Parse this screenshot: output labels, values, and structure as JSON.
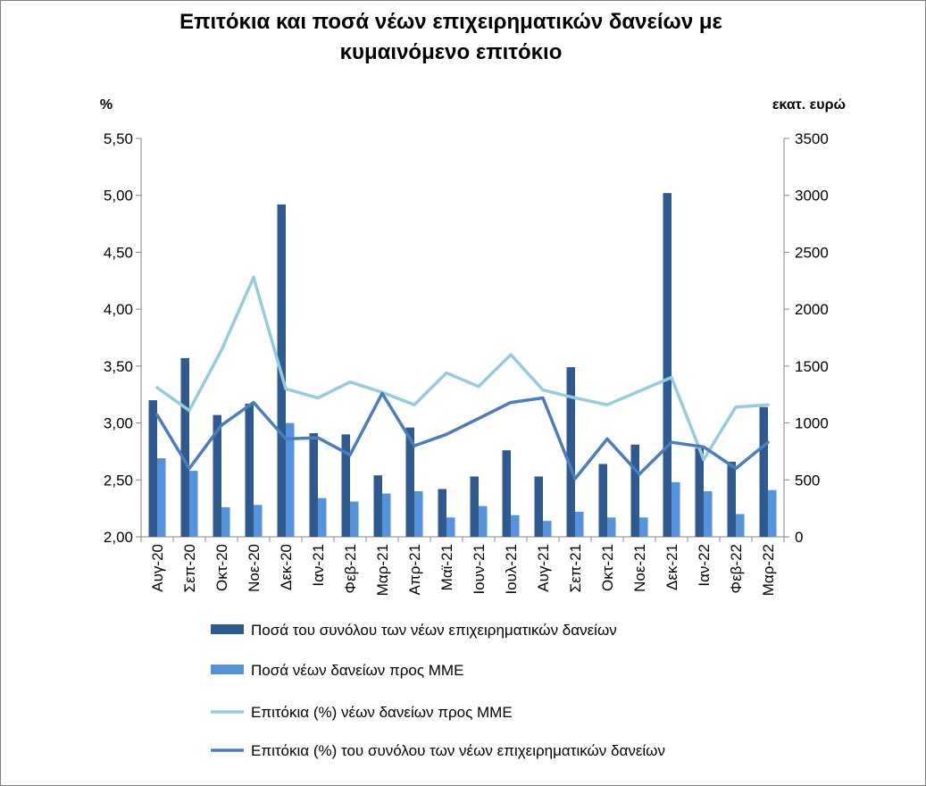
{
  "chart_data": {
    "type": "bar",
    "title_line1": "Επιτόκια και ποσά νέων επιχειρηματικών  δανείων με",
    "title_line2": "κυμαινόμενο επιτόκιο",
    "ylabel_left": "%",
    "ylabel_right": "εκατ. ευρώ",
    "ylim_left": [
      2.0,
      5.5
    ],
    "ylim_right": [
      0,
      3500
    ],
    "yticks_left": [
      "2,00",
      "2,50",
      "3,00",
      "3,50",
      "4,00",
      "4,50",
      "5,00",
      "5,50"
    ],
    "yticks_right": [
      "0",
      "500",
      "1000",
      "1500",
      "2000",
      "2500",
      "3000",
      "3500"
    ],
    "categories": [
      "Αυγ-20",
      "Σεπ-20",
      "Οκτ-20",
      "Νοε-20",
      "Δεκ-20",
      "Ιαν-21",
      "Φεβ-21",
      "Μαρ-21",
      "Απρ-21",
      "Μαϊ-21",
      "Ιουν-21",
      "Ιουλ-21",
      "Αυγ-21",
      "Σεπ-21",
      "Οκτ-21",
      "Νοε-21",
      "Δεκ-21",
      "Ιαν-22",
      "Φεβ-22",
      "Μαρ-22"
    ],
    "series": [
      {
        "name": "Ποσά του συνόλου των νέων επιχειρηματικών δανείων",
        "kind": "bar",
        "axis": "right",
        "color": "#2f5a8e",
        "values": [
          1200,
          1570,
          1070,
          1170,
          2920,
          910,
          900,
          540,
          960,
          420,
          530,
          760,
          530,
          1490,
          640,
          810,
          3020,
          780,
          660,
          1140
        ]
      },
      {
        "name": "Ποσά νέων δανείων προς ΜΜΕ",
        "kind": "bar",
        "axis": "right",
        "color": "#5692da",
        "values": [
          690,
          580,
          260,
          280,
          1000,
          340,
          310,
          380,
          400,
          170,
          270,
          190,
          140,
          220,
          170,
          170,
          480,
          400,
          200,
          410
        ]
      },
      {
        "name": "Επιτόκια (%) νέων δανείων προς ΜΜΕ",
        "kind": "line",
        "axis": "left",
        "color": "#93cddd",
        "values": [
          3.31,
          3.11,
          3.64,
          4.28,
          3.3,
          3.22,
          3.36,
          3.27,
          3.16,
          3.44,
          3.32,
          3.6,
          3.29,
          3.22,
          3.16,
          3.28,
          3.4,
          2.68,
          3.14,
          3.16
        ]
      },
      {
        "name": "Επιτόκια (%) του συνόλου των νέων επιχειρηματικών δανείων",
        "kind": "line",
        "axis": "left",
        "color": "#4a7ebb",
        "values": [
          3.07,
          2.6,
          2.98,
          3.18,
          2.86,
          2.87,
          2.72,
          3.26,
          2.8,
          2.9,
          3.04,
          3.18,
          3.22,
          2.51,
          2.86,
          2.55,
          2.83,
          2.79,
          2.6,
          2.83
        ]
      }
    ],
    "grid": false,
    "legend_position": "bottom"
  }
}
